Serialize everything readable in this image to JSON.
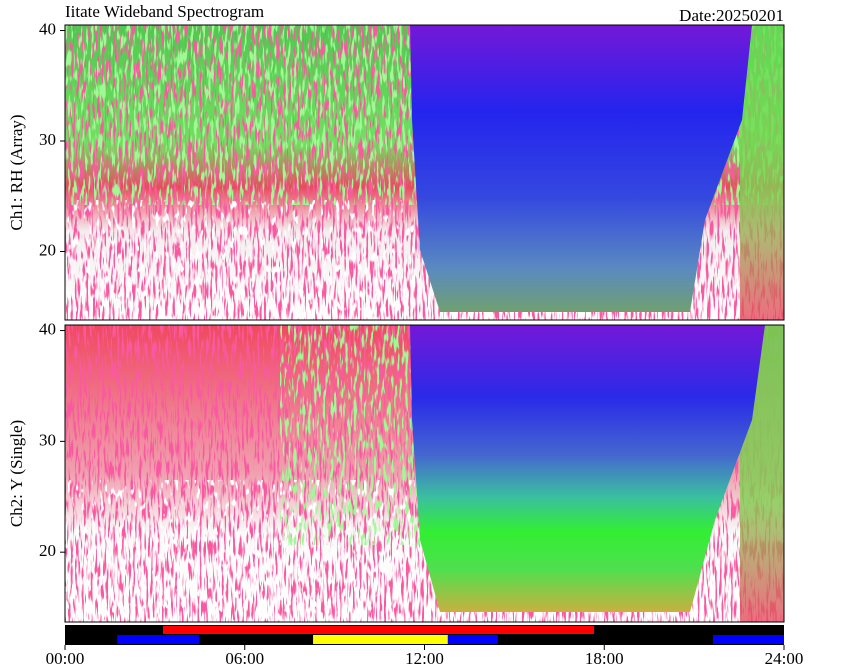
{
  "title": "Iitate Wideband Spectrogram",
  "date": "Date:20250201",
  "chart_data": [
    {
      "type": "spectrogram",
      "ylabel": "Ch1: RH (Array)",
      "xlim": [
        0,
        24
      ],
      "ylim": [
        13.8,
        40.5
      ],
      "yticks": [
        20,
        30,
        40
      ]
    },
    {
      "type": "spectrogram",
      "ylabel": "Ch2: Y (Single)",
      "xlim": [
        0,
        24
      ],
      "ylim": [
        13.7,
        40.5
      ],
      "yticks": [
        20,
        30,
        40
      ]
    },
    {
      "type": "timeline",
      "xlim": [
        0,
        24
      ],
      "xticks": [
        {
          "value": 0,
          "label": "00:00"
        },
        {
          "value": 6,
          "label": "06:00"
        },
        {
          "value": 12,
          "label": "12:00"
        },
        {
          "value": 18,
          "label": "18:00"
        },
        {
          "value": 24,
          "label": "24:00"
        }
      ],
      "rows": [
        {
          "segments": [
            {
              "start": 3.27,
              "end": 17.66,
              "color": "#ff0000"
            }
          ]
        },
        {
          "segments": [
            {
              "start": 1.74,
              "end": 4.47,
              "color": "#0000ff"
            },
            {
              "start": 8.28,
              "end": 12.78,
              "color": "#ffff00"
            },
            {
              "start": 12.78,
              "end": 14.45,
              "color": "#0000ff"
            },
            {
              "start": 21.63,
              "end": 24,
              "color": "#0000ff"
            }
          ]
        }
      ]
    }
  ]
}
